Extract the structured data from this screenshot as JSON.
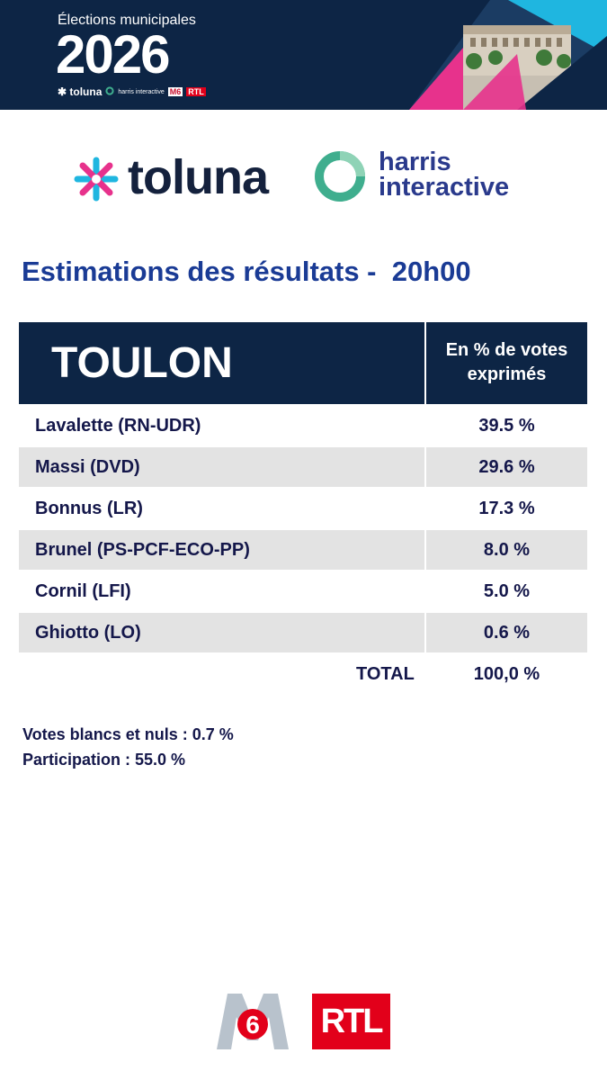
{
  "banner": {
    "subtitle": "Élections municipales",
    "year": "2026",
    "mini_toluna": "✱ toluna",
    "mini_harris": "harris interactive",
    "mini_m6": "M6",
    "mini_rtl": "RTL"
  },
  "partners": {
    "toluna": "toluna",
    "harris_line1": "harris",
    "harris_line2": "interactive",
    "colors": {
      "toluna_cyan": "#1fb6e0",
      "toluna_pink": "#e7328c",
      "harris_green": "#3fae8e",
      "navy": "#0d2545"
    }
  },
  "title": "Estimations des résultats -  20h00",
  "table": {
    "city": "TOULON",
    "column_header_line1": "En % de votes",
    "column_header_line2": "exprimés",
    "rows": [
      {
        "name": "Lavalette (RN-UDR)",
        "value": "39.5 %"
      },
      {
        "name": "Massi (DVD)",
        "value": "29.6 %"
      },
      {
        "name": "Bonnus (LR)",
        "value": "17.3 %"
      },
      {
        "name": "Brunel (PS-PCF-ECO-PP)",
        "value": "8.0 %"
      },
      {
        "name": "Cornil (LFI)",
        "value": "5.0 %"
      },
      {
        "name": "Ghiotto (LO)",
        "value": "0.6 %"
      }
    ],
    "total_label": "TOTAL",
    "total_value": "100,0 %"
  },
  "notes": {
    "blank_votes": "Votes blancs et nuls : 0.7 %",
    "participation": "Participation : 55.0 %"
  },
  "footer": {
    "m6": "6",
    "rtl": "RTL"
  }
}
